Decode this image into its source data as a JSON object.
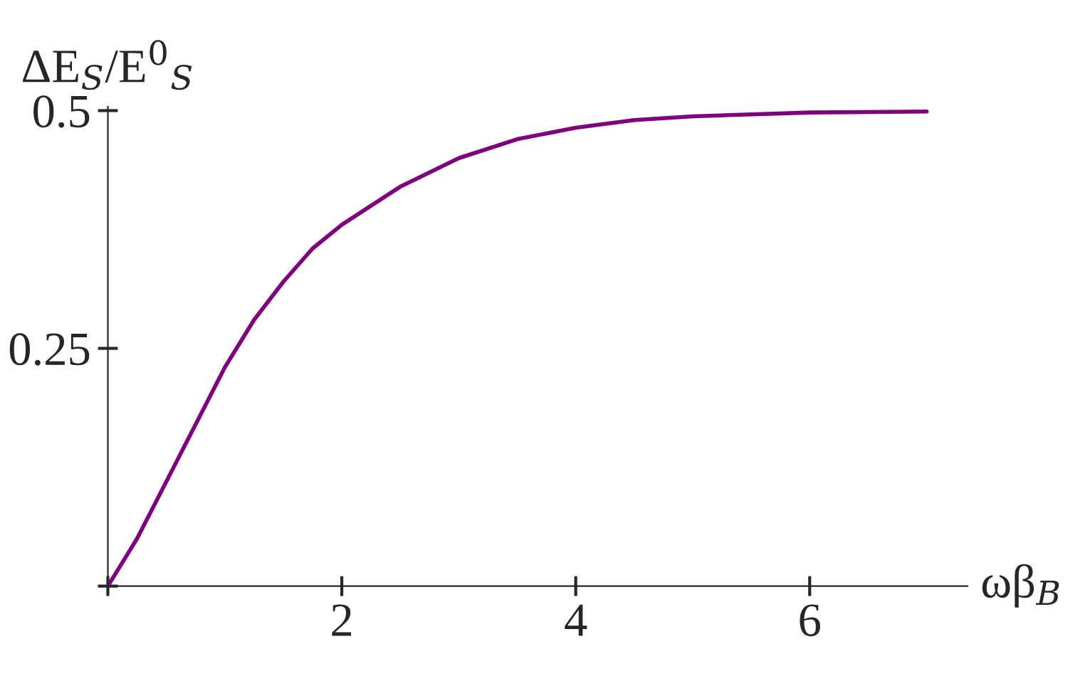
{
  "chart_data": {
    "type": "line",
    "xlabel": "ωβ$_{B}$",
    "ylabel": "ΔE$_{S}$/E$^{0}$$_{S}$",
    "x": [
      0,
      0.25,
      0.5,
      0.75,
      1,
      1.25,
      1.5,
      1.75,
      2,
      2.5,
      3,
      3.5,
      4,
      4.5,
      5,
      5.5,
      6,
      7
    ],
    "series": [
      {
        "color": "#800080",
        "values": [
          0,
          0.05,
          0.11,
          0.17,
          0.23,
          0.28,
          0.32,
          0.355,
          0.38,
          0.42,
          0.45,
          0.47,
          0.482,
          0.49,
          0.494,
          0.496,
          0.498,
          0.499
        ]
      }
    ],
    "xlim": [
      0,
      7.35
    ],
    "ylim": [
      0,
      0.504
    ],
    "xticks": [
      {
        "value": 0,
        "label": null
      },
      2,
      4,
      6
    ],
    "yticks": [
      {
        "value": 0,
        "label": null
      },
      0.25,
      0.5
    ],
    "grid": false,
    "legend": false,
    "marker": "none",
    "line_style": "solid"
  }
}
